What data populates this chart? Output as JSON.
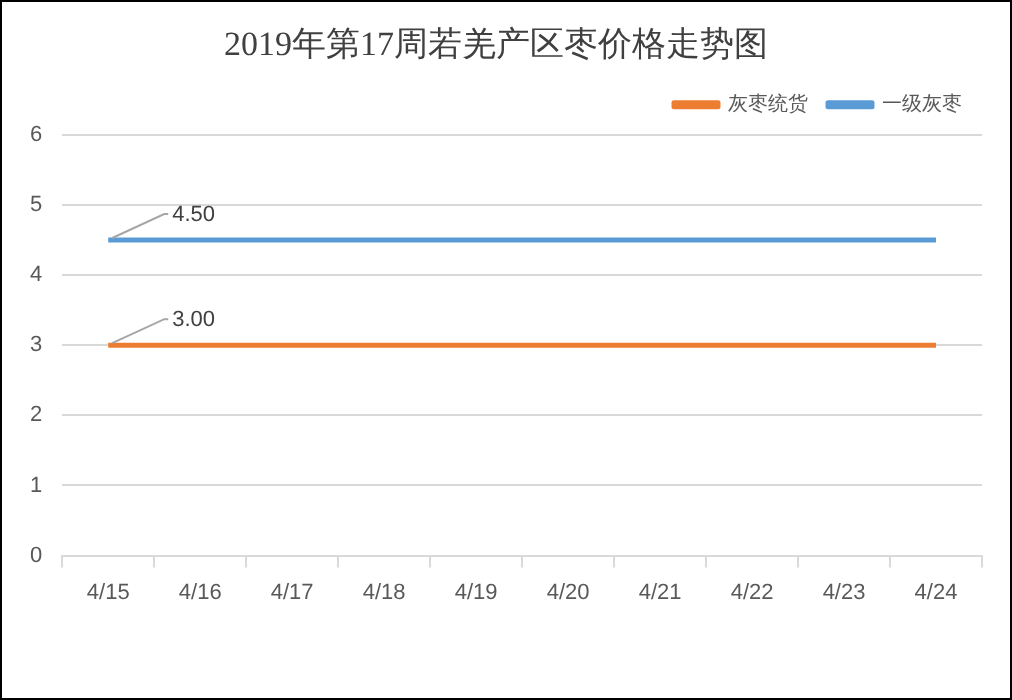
{
  "chart_data": {
    "type": "line",
    "title": "2019年第17周若羌产区枣价格走势图",
    "categories": [
      "4/15",
      "4/16",
      "4/17",
      "4/18",
      "4/19",
      "4/20",
      "4/21",
      "4/22",
      "4/23",
      "4/24"
    ],
    "series": [
      {
        "name": "灰枣统货",
        "color": "#ed7d31",
        "values": [
          3,
          3,
          3,
          3,
          3,
          3,
          3,
          3,
          3,
          3
        ],
        "value_labels": [
          "3.00",
          null,
          null,
          null,
          null,
          null,
          null,
          null,
          null,
          null
        ]
      },
      {
        "name": "一级灰枣",
        "color": "#5b9bd5",
        "values": [
          4.5,
          4.5,
          4.5,
          4.5,
          4.5,
          4.5,
          4.5,
          4.5,
          4.5,
          4.5
        ],
        "value_labels": [
          "4.50",
          null,
          null,
          null,
          null,
          null,
          null,
          null,
          null,
          null
        ]
      }
    ],
    "ylim": [
      0,
      6
    ],
    "yticks": [
      0,
      1,
      2,
      3,
      4,
      5,
      6
    ],
    "grid": "y",
    "legend": "top right",
    "marker": "none",
    "line_style": "solid"
  }
}
